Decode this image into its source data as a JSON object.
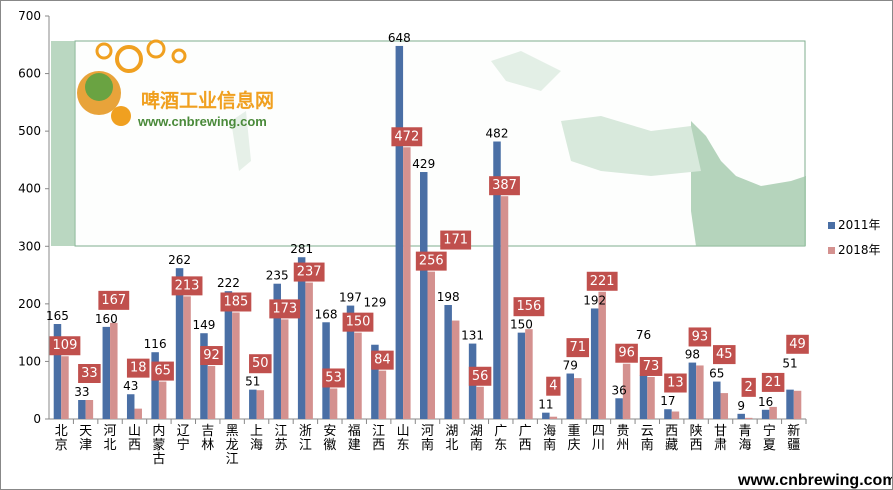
{
  "chart_data": {
    "type": "bar",
    "title": "",
    "xlabel": "",
    "ylabel": "",
    "ylim": [
      0,
      700
    ],
    "yticks": [
      0,
      100,
      200,
      300,
      400,
      500,
      600,
      700
    ],
    "grid": false,
    "legend": "right",
    "categories": [
      "北京",
      "天津",
      "河北",
      "山西",
      "内蒙古",
      "辽宁",
      "吉林",
      "黑龙江",
      "上海",
      "江苏",
      "浙江",
      "安徽",
      "福建",
      "江西",
      "山东",
      "河南",
      "湖北",
      "湖南",
      "广东",
      "广西",
      "海南",
      "重庆",
      "四川",
      "贵州",
      "云南",
      "西藏",
      "陕西",
      "甘肃",
      "青海",
      "宁夏",
      "新疆"
    ],
    "series": [
      {
        "name": "2011年",
        "color": "#4a6fa5",
        "values": [
          165,
          33,
          160,
          43,
          116,
          262,
          149,
          222,
          51,
          235,
          281,
          168,
          197,
          129,
          648,
          429,
          198,
          131,
          482,
          150,
          11,
          79,
          192,
          36,
          76,
          17,
          98,
          65,
          9,
          16,
          51
        ]
      },
      {
        "name": "2018年",
        "color": "#d4918f",
        "values": [
          109,
          33,
          167,
          18,
          65,
          213,
          92,
          185,
          50,
          173,
          237,
          53,
          150,
          84,
          472,
          256,
          171,
          56,
          387,
          156,
          4,
          71,
          221,
          96,
          73,
          13,
          93,
          45,
          2,
          21,
          49
        ]
      }
    ]
  },
  "watermark": {
    "logo_text": "啤酒工业信息网",
    "logo_url": "www.cnbrewing.com",
    "footer_url": "www.cnbrewing.com"
  },
  "colors": {
    "label_box": "#c0504d",
    "map": "#8fbf9a"
  }
}
